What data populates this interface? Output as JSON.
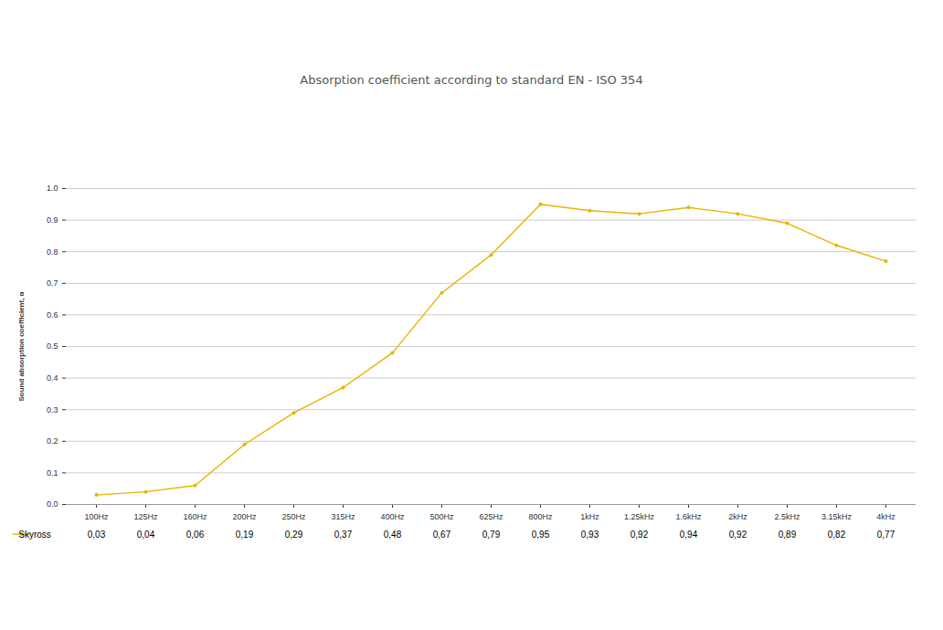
{
  "chart_data": {
    "type": "line",
    "title": "Absorption coefficient according to standard EN - ISO 354",
    "y_label": "Sound absorption coefficient, α",
    "categories": [
      "100Hz",
      "125Hz",
      "160Hz",
      "200Hz",
      "250Hz",
      "315Hz",
      "400Hz",
      "500Hz",
      "625Hz",
      "800Hz",
      "1kHz",
      "1.25kHz",
      "1.6kHz",
      "2kHz",
      "2.5kHz",
      "3.15kHz",
      "4kHz"
    ],
    "series": [
      {
        "name": "Skyross",
        "color": "#e6b400",
        "marker": "circle",
        "values": [
          0.03,
          0.04,
          0.06,
          0.19,
          0.29,
          0.37,
          0.48,
          0.67,
          0.79,
          0.95,
          0.93,
          0.92,
          0.94,
          0.92,
          0.89,
          0.82,
          0.77
        ],
        "value_labels": [
          "0,03",
          "0,04",
          "0,06",
          "0,19",
          "0,29",
          "0,37",
          "0,48",
          "0,67",
          "0,79",
          "0,95",
          "0,93",
          "0,92",
          "0,94",
          "0,92",
          "0,89",
          "0,82",
          "0,77"
        ]
      }
    ],
    "ylim": [
      0,
      1
    ],
    "yticks": [
      {
        "value": 0,
        "label": "0.0"
      },
      0.1,
      0.2,
      0.3,
      0.4,
      0.5,
      0.6,
      0.7,
      0.8,
      0.9,
      {
        "value": 1,
        "label": "1.0"
      }
    ],
    "grid": true,
    "data_labels": true,
    "legend": "bottom-left"
  }
}
